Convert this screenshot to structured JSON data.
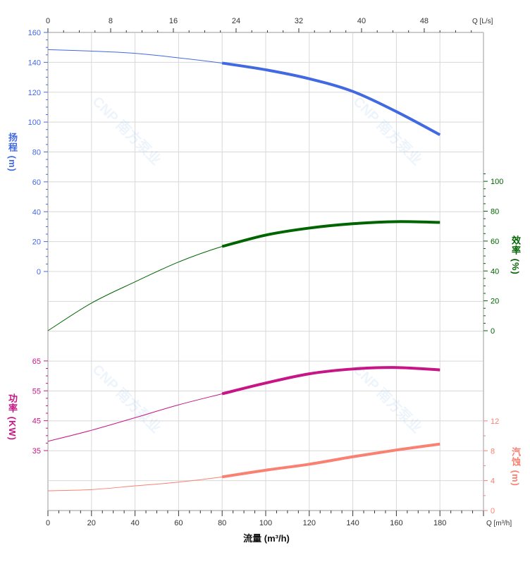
{
  "chart_data": {
    "type": "line",
    "xlabel": "流量 (m³/h)",
    "x_unit_label_bottom": "Q [m³/h]",
    "x_unit_label_top": "Q [L/s]",
    "xlim": [
      0,
      200
    ],
    "x_ticks": [
      0,
      20,
      40,
      60,
      80,
      100,
      120,
      140,
      160,
      180
    ],
    "x2_ticks": [
      0,
      8,
      16,
      24,
      32,
      40,
      48
    ],
    "x2lim": [
      0,
      55.6
    ],
    "grid": true,
    "operating_range": [
      80,
      180
    ],
    "watermark": "CNP 南方泵业",
    "x": [
      0,
      20,
      40,
      60,
      80,
      100,
      120,
      140,
      160,
      180
    ],
    "series": [
      {
        "name": "扬程",
        "unit": "(m)",
        "axis": "left-top",
        "color": "#4169E1",
        "ylim": [
          0,
          160
        ],
        "ticks": [
          0,
          20,
          40,
          60,
          80,
          100,
          120,
          140,
          160
        ],
        "values": [
          148.5,
          147.5,
          146,
          143,
          139.5,
          135,
          129,
          120.5,
          107,
          91.5
        ]
      },
      {
        "name": "效率",
        "unit": "(%)",
        "axis": "right-middle",
        "color": "#006400",
        "ylim": [
          0,
          100
        ],
        "ticks": [
          0,
          20,
          40,
          60,
          80,
          100
        ],
        "values": [
          0,
          18.5,
          32.7,
          46,
          56.4,
          64,
          68.7,
          71.6,
          73,
          72.5
        ]
      },
      {
        "name": "功率",
        "unit": "(KW)",
        "axis": "left-bottom",
        "color": "#C71585",
        "ylim": [
          35,
          65
        ],
        "ticks": [
          35,
          45,
          55,
          65
        ],
        "values": [
          38.1,
          41.8,
          46,
          50.3,
          54,
          57.6,
          60.7,
          62.3,
          62.8,
          62
        ]
      },
      {
        "name": "汽蚀",
        "unit": "(m)",
        "axis": "right-bottom",
        "color": "#FA8072",
        "ylim": [
          0,
          12
        ],
        "ticks": [
          0,
          4,
          8,
          12
        ],
        "values": [
          2.64,
          2.8,
          3.3,
          3.8,
          4.5,
          5.4,
          6.2,
          7.2,
          8.1,
          8.9
        ]
      }
    ]
  }
}
